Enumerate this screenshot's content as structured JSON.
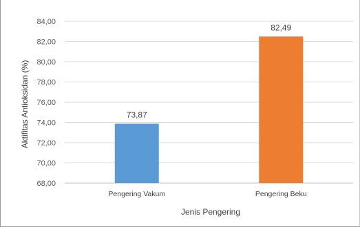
{
  "chart_data": {
    "type": "bar",
    "categories": [
      "Pengering Vakum",
      "Pengering Beku"
    ],
    "values": [
      73.87,
      82.49
    ],
    "data_labels": [
      "73,87",
      "82,49"
    ],
    "bar_colors": [
      "#5b9bd5",
      "#ed7d31"
    ],
    "xlabel": "Jenis Pengering",
    "ylabel": "Aktifitas Antioksidan (%)",
    "ylim": [
      68,
      84
    ],
    "yticks": [
      84,
      82,
      80,
      78,
      76,
      74,
      72,
      70,
      68
    ],
    "ytick_labels": [
      "84,00",
      "82,00",
      "80,00",
      "78,00",
      "76,00",
      "74,00",
      "72,00",
      "70,00",
      "68,00"
    ],
    "grid": true,
    "gridline_color": "#d9d9d9",
    "legend": "none"
  }
}
